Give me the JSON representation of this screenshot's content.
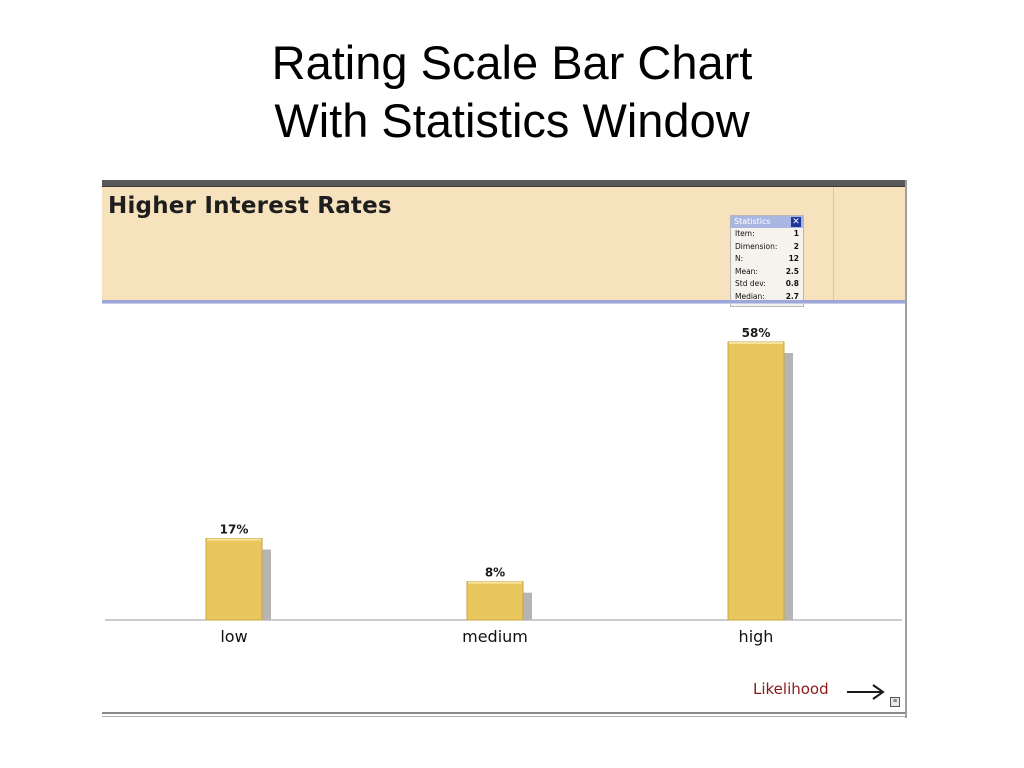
{
  "slide": {
    "title_line1": "Rating Scale Bar Chart",
    "title_line2": "With Statistics Window"
  },
  "window": {
    "header_title": "Higher Interest Rates",
    "axis_caption": "Likelihood",
    "colors": {
      "header_bg": "#f6e2bd",
      "bar_fill": "#e9c75e",
      "bar_shadow": "#b5b5b5",
      "caption": "#8b1a1a"
    }
  },
  "statistics": {
    "title": "Statistics",
    "close_icon": "close-icon",
    "rows": [
      {
        "label": "Item:",
        "value": "1"
      },
      {
        "label": "Dimension:",
        "value": "2"
      },
      {
        "label": "N:",
        "value": "12"
      },
      {
        "label": "Mean:",
        "value": "2.5"
      },
      {
        "label": "Std dev:",
        "value": "0.8"
      },
      {
        "label": "Median:",
        "value": "2.7"
      }
    ]
  },
  "chart_data": {
    "type": "bar",
    "title": "Higher Interest Rates",
    "categories": [
      "low",
      "medium",
      "high"
    ],
    "values": [
      17,
      8,
      58
    ],
    "value_labels": [
      "17%",
      "8%",
      "58%"
    ],
    "unit": "%",
    "xlabel": "Likelihood",
    "ylabel": "",
    "ylim": [
      0,
      60
    ],
    "grid": false
  }
}
